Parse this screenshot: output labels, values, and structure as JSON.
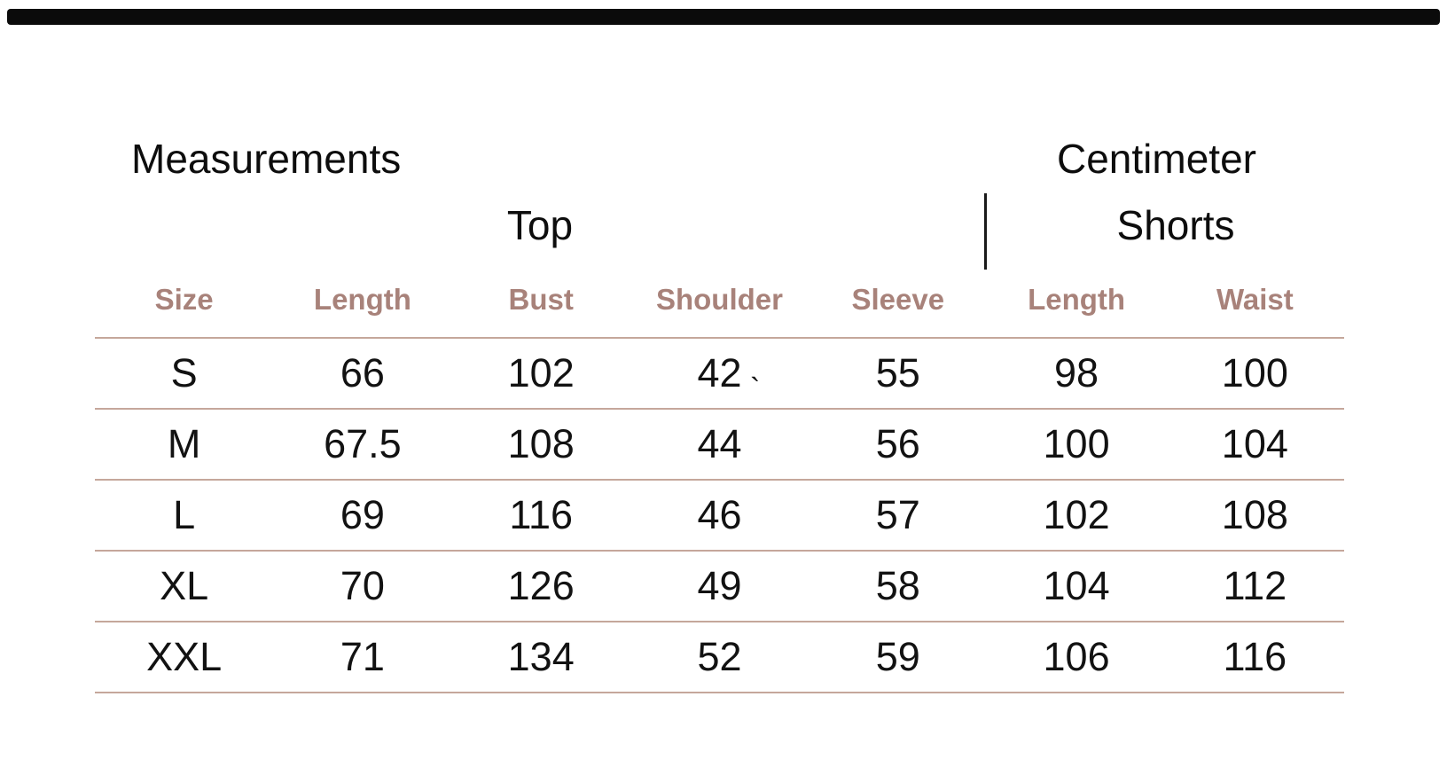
{
  "titles": {
    "left": "Measurements",
    "right": "Centimeter"
  },
  "groups": {
    "top": "Top",
    "shorts": "Shorts"
  },
  "columns": [
    "Size",
    "Length",
    "Bust",
    "Shoulder",
    "Sleeve",
    "Length",
    "Waist"
  ],
  "rows": [
    [
      "S",
      "66",
      "102",
      "42",
      "55",
      "98",
      "100"
    ],
    [
      "M",
      "67.5",
      "108",
      "44",
      "56",
      "100",
      "104"
    ],
    [
      "L",
      "69",
      "116",
      "46",
      "57",
      "102",
      "108"
    ],
    [
      "XL",
      "70",
      "126",
      "49",
      "58",
      "104",
      "112"
    ],
    [
      "XXL",
      "71",
      "134",
      "52",
      "59",
      "106",
      "116"
    ]
  ],
  "stray_mark": "`",
  "colors": {
    "header_text": "#a8827a",
    "row_line": "#c5a79b",
    "body_text": "#121212",
    "top_bar": "#0b0b0b"
  },
  "chart_data": {
    "type": "table",
    "title": "Measurements",
    "unit": "Centimeter",
    "column_groups": [
      {
        "label": "Top",
        "columns": [
          "Length",
          "Bust",
          "Shoulder",
          "Sleeve"
        ]
      },
      {
        "label": "Shorts",
        "columns": [
          "Length",
          "Waist"
        ]
      }
    ],
    "columns": [
      "Size",
      "Length",
      "Bust",
      "Shoulder",
      "Sleeve",
      "Length",
      "Waist"
    ],
    "rows": [
      {
        "size": "S",
        "top_length": 66,
        "bust": 102,
        "shoulder": 42,
        "sleeve": 55,
        "shorts_length": 98,
        "waist": 100
      },
      {
        "size": "M",
        "top_length": 67.5,
        "bust": 108,
        "shoulder": 44,
        "sleeve": 56,
        "shorts_length": 100,
        "waist": 104
      },
      {
        "size": "L",
        "top_length": 69,
        "bust": 116,
        "shoulder": 46,
        "sleeve": 57,
        "shorts_length": 102,
        "waist": 108
      },
      {
        "size": "XL",
        "top_length": 70,
        "bust": 126,
        "shoulder": 49,
        "sleeve": 58,
        "shorts_length": 104,
        "waist": 112
      },
      {
        "size": "XXL",
        "top_length": 71,
        "bust": 134,
        "shoulder": 52,
        "sleeve": 59,
        "shorts_length": 106,
        "waist": 116
      }
    ],
    "layout": {
      "grid": "horizontal row separators only",
      "legend_position": "none"
    }
  }
}
